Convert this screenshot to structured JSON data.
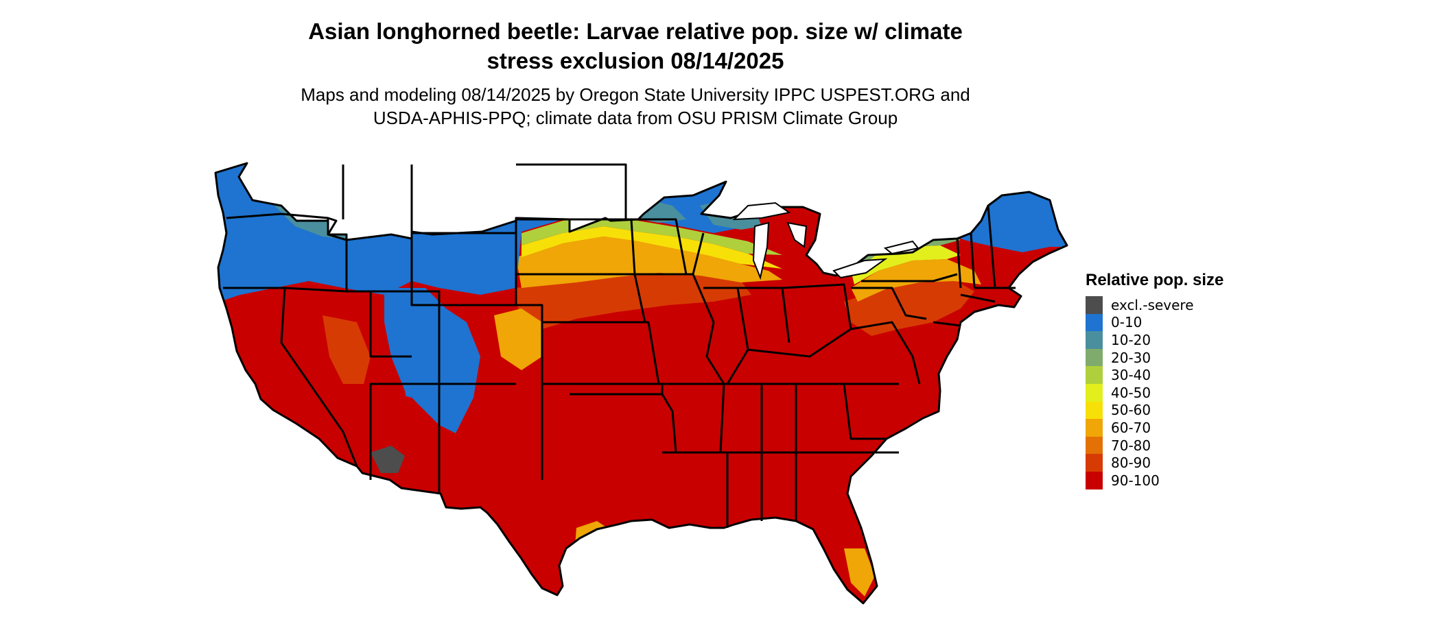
{
  "title": {
    "line1": "Asian longhorned beetle: Larvae relative pop. size w/ climate",
    "line2": "stress exclusion 08/14/2025"
  },
  "subtitle": {
    "line1": "Maps and modeling 08/14/2025 by Oregon State University IPPC USPEST.ORG and",
    "line2": "USDA-APHIS-PPQ; climate data from OSU PRISM Climate Group"
  },
  "legend": {
    "title": "Relative pop. size",
    "items": [
      {
        "label": "excl.-severe",
        "color": "#4d4d4d"
      },
      {
        "label": "0-10",
        "color": "#1e74d0"
      },
      {
        "label": "10-20",
        "color": "#4a8f9e"
      },
      {
        "label": "20-30",
        "color": "#7fac6c"
      },
      {
        "label": "30-40",
        "color": "#b0cf3c"
      },
      {
        "label": "40-50",
        "color": "#e2ef1c"
      },
      {
        "label": "50-60",
        "color": "#f7e007"
      },
      {
        "label": "60-70",
        "color": "#efa606"
      },
      {
        "label": "70-80",
        "color": "#e37106"
      },
      {
        "label": "80-90",
        "color": "#d73b04"
      },
      {
        "label": "90-100",
        "color": "#c90000"
      }
    ]
  },
  "map": {
    "region": "contiguous-united-states",
    "boundary_color": "#000000",
    "colors": {
      "excl": "#4d4d4d",
      "c0_10": "#1e74d0",
      "c10_20": "#4a8f9e",
      "c20_30": "#7fac6c",
      "c30_40": "#b0cf3c",
      "c40_50": "#e2ef1c",
      "c50_60": "#f7e007",
      "c60_70": "#efa606",
      "c70_80": "#e37106",
      "c80_90": "#d73b04",
      "c90_100": "#c90000"
    }
  }
}
